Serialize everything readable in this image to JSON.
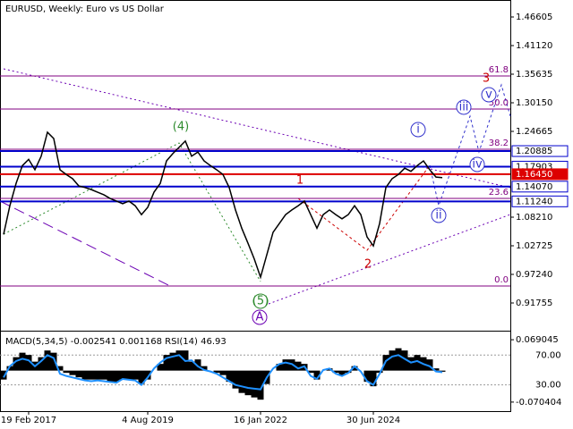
{
  "chart_data": [
    {
      "type": "line",
      "title": "EURUSD, Weekly:  Euro vs US Dollar",
      "values": [
        1.049,
        1.104,
        1.147,
        1.181,
        1.193,
        1.173,
        1.199,
        1.245,
        1.233,
        1.173,
        1.164,
        1.156,
        1.142,
        1.139,
        1.135,
        1.13,
        1.125,
        1.118,
        1.113,
        1.108,
        1.113,
        1.104,
        1.087,
        1.101,
        1.13,
        1.147,
        1.19,
        1.204,
        1.216,
        1.228,
        1.199,
        1.207,
        1.19,
        1.181,
        1.173,
        1.164,
        1.139,
        1.096,
        1.061,
        1.032,
        1.002,
        0.967,
        1.01,
        1.053,
        1.07,
        1.087,
        1.096,
        1.104,
        1.113,
        1.087,
        1.061,
        1.087,
        1.096,
        1.087,
        1.079,
        1.087,
        1.104,
        1.087,
        1.044,
        1.027,
        1.07,
        1.139,
        1.156,
        1.164,
        1.176,
        1.17,
        1.181,
        1.19,
        1.173,
        1.159,
        1.158
      ],
      "color": "#000000",
      "ylim": [
        0.8644,
        1.4986
      ],
      "yticks": [
        1.46605,
        {
          "value": 1.4112,
          "label": "1.41120"
        },
        1.35635,
        {
          "value": 1.3015,
          "label": "1.30150"
        },
        1.24665,
        {
          "value": 1.0821,
          "label": "1.08210"
        },
        1.02725,
        {
          "value": 0.9724,
          "label": "0.97240"
        },
        0.91755
      ],
      "price_lines": [
        {
          "price": 1.20885,
          "color": "#0000cc"
        },
        {
          "price": 1.17903,
          "color": "#0000cc"
        },
        {
          "price": {
            "value": 1.1645,
            "label": "1.16450"
          },
          "color": "#dd0000"
        },
        {
          "price": {
            "value": 1.1407,
            "label": "1.14070"
          },
          "color": "#0000cc"
        },
        {
          "price": {
            "value": 1.1124,
            "label": "1.11240"
          },
          "color": "#0000cc"
        }
      ],
      "fib_color": "#800080",
      "fib_levels": [
        {
          "label": "61.8",
          "price": 1.3529
        },
        {
          "label": "50.0",
          "price": 1.2895
        },
        {
          "label": "38.2",
          "price": 1.2123
        },
        {
          "label": "23.6",
          "price": 1.1181
        },
        {
          "label": "0.0",
          "price": 0.9501
        }
      ],
      "wave_labels": [
        "(4)",
        "(5)",
        "A",
        "1",
        "2",
        "3",
        "i",
        "ii",
        "iii",
        "iv",
        "v"
      ]
    },
    {
      "type": "bar",
      "title": "MACD(5,34,5) -0.002541 0.001168 RSI(14) 46.93",
      "categories": [
        null,
        null,
        null,
        null,
        "19 Feb 2017",
        null,
        null,
        null,
        null,
        null,
        null,
        null,
        null,
        null,
        null,
        null,
        null,
        null,
        null,
        null,
        null,
        null,
        null,
        "4 Aug 2019",
        null,
        null,
        null,
        null,
        null,
        null,
        null,
        null,
        null,
        null,
        null,
        null,
        null,
        null,
        null,
        null,
        null,
        "16 Jan 2022",
        null,
        null,
        null,
        null,
        null,
        null,
        null,
        null,
        null,
        null,
        null,
        null,
        null,
        null,
        null,
        null,
        null,
        "30 Jun 2024",
        null,
        null,
        null,
        null,
        null,
        null,
        null,
        null,
        null,
        null,
        null
      ],
      "values": [
        -0.02,
        0.01,
        0.03,
        0.04,
        0.035,
        0.02,
        0.03,
        0.045,
        0.04,
        0.01,
        -0.005,
        -0.01,
        -0.015,
        -0.02,
        -0.02,
        -0.02,
        -0.02,
        -0.025,
        -0.025,
        -0.02,
        -0.02,
        -0.02,
        -0.03,
        -0.02,
        0.0,
        0.015,
        0.035,
        0.04,
        0.045,
        0.045,
        0.02,
        0.025,
        0.01,
        0.0,
        -0.005,
        -0.01,
        -0.025,
        -0.04,
        -0.05,
        -0.055,
        -0.06,
        -0.065,
        -0.03,
        0.0,
        0.015,
        0.025,
        0.025,
        0.02,
        0.015,
        -0.005,
        -0.02,
        0.0,
        0.005,
        -0.005,
        -0.01,
        -0.005,
        0.01,
        0.0,
        -0.025,
        -0.035,
        -0.005,
        0.035,
        0.045,
        0.05,
        0.045,
        0.03,
        0.035,
        0.03,
        0.025,
        0.005,
        -0.002541
      ],
      "color": "#000000",
      "ylim": [
        -0.09061,
        0.08724
      ],
      "yticks": [
        0.069045,
        -0.070404
      ],
      "y2lim": [
        -5.15,
        101.5
      ],
      "y2ticks": [
        {
          "value": 70,
          "label": "70.00"
        },
        {
          "value": 30,
          "label": "30.00"
        }
      ],
      "series": [
        {
          "color": "#1e90ff",
          "axis": "y2",
          "values": [
            40,
            55,
            62,
            65,
            63,
            55,
            62,
            70,
            66,
            45,
            42,
            40,
            38,
            36,
            35,
            36,
            35,
            34,
            33,
            38,
            37,
            36,
            30,
            40,
            52,
            60,
            66,
            68,
            70,
            62,
            63,
            55,
            50,
            48,
            45,
            40,
            35,
            30,
            28,
            26,
            25,
            24,
            40,
            52,
            58,
            60,
            58,
            52,
            55,
            42,
            38,
            50,
            52,
            45,
            42,
            46,
            55,
            48,
            35,
            30,
            45,
            62,
            68,
            70,
            65,
            60,
            62,
            58,
            55,
            48,
            46.93
          ]
        }
      ]
    }
  ]
}
